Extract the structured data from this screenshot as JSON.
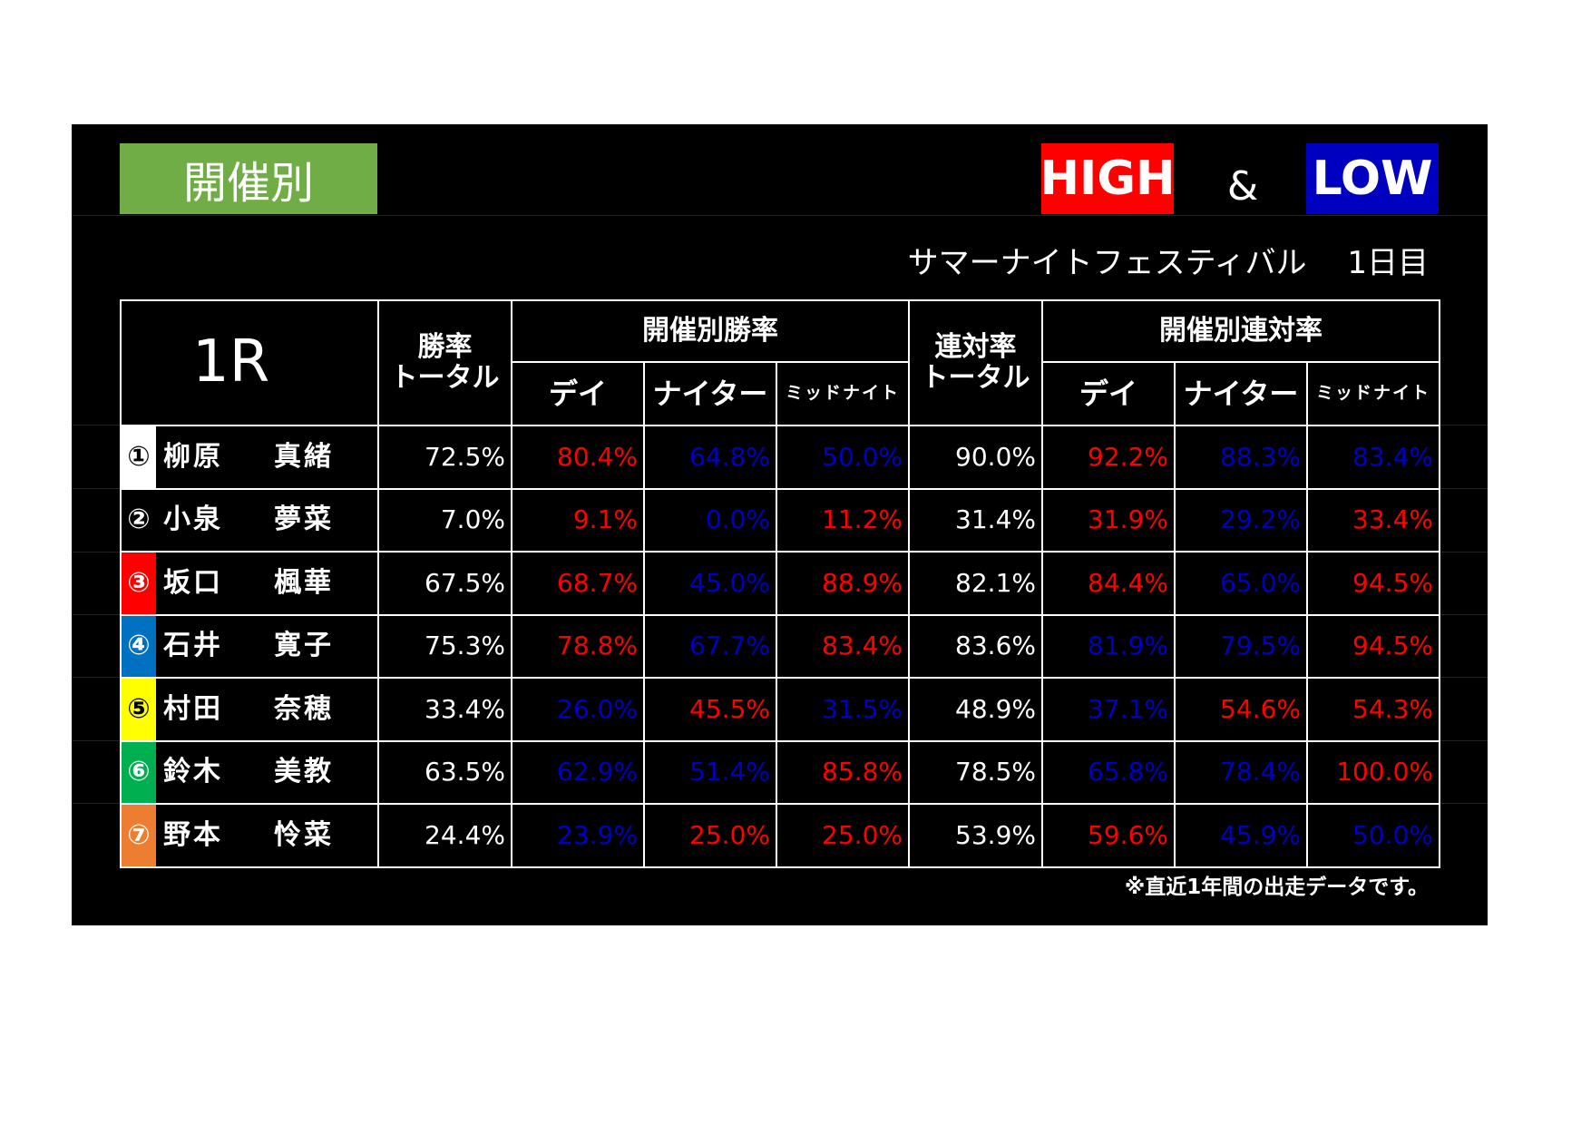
{
  "header": {
    "title": "開催別",
    "high": "HIGH",
    "amp": "&",
    "low": "LOW",
    "high_color": "#ff0000",
    "low_color": "#0000c0",
    "subtitle": "サマーナイトフェスティバル　 1日目"
  },
  "table": {
    "race": "1R",
    "col_win_total": "勝率\nトータル",
    "group_win": "開催別勝率",
    "col_place_total": "連対率\nトータル",
    "group_place": "開催別連対率",
    "sub_headers": [
      "デイ",
      "ナイター",
      "ミッドナイト",
      "デイ",
      "ナイター",
      "ミッドナイト"
    ],
    "rows": [
      {
        "number": "①",
        "badge_color": "#ffffff",
        "number_color": "#000000",
        "surname": "柳原",
        "given": "真緒",
        "values": [
          "72.5%",
          "80.4%",
          "64.8%",
          "50.0%",
          "90.0%",
          "92.2%",
          "88.3%",
          "83.4%"
        ],
        "colors": [
          "#ffffff",
          "#ff0000",
          "#0000c0",
          "#0000c0",
          "#ffffff",
          "#ff0000",
          "#0000c0",
          "#0000c0"
        ]
      },
      {
        "number": "②",
        "badge_color": "#000000",
        "number_color": "#ffffff",
        "surname": "小泉",
        "given": "夢菜",
        "values": [
          "7.0%",
          "9.1%",
          "0.0%",
          "11.2%",
          "31.4%",
          "31.9%",
          "29.2%",
          "33.4%"
        ],
        "colors": [
          "#ffffff",
          "#ff0000",
          "#0000c0",
          "#ff0000",
          "#ffffff",
          "#ff0000",
          "#0000c0",
          "#ff0000"
        ]
      },
      {
        "number": "③",
        "badge_color": "#ff0000",
        "number_color": "#ffffff",
        "surname": "坂口",
        "given": "楓華",
        "values": [
          "67.5%",
          "68.7%",
          "45.0%",
          "88.9%",
          "82.1%",
          "84.4%",
          "65.0%",
          "94.5%"
        ],
        "colors": [
          "#ffffff",
          "#ff0000",
          "#0000c0",
          "#ff0000",
          "#ffffff",
          "#ff0000",
          "#0000c0",
          "#ff0000"
        ]
      },
      {
        "number": "④",
        "badge_color": "#0070c0",
        "number_color": "#ffffff",
        "surname": "石井",
        "given": "寛子",
        "values": [
          "75.3%",
          "78.8%",
          "67.7%",
          "83.4%",
          "83.6%",
          "81.9%",
          "79.5%",
          "94.5%"
        ],
        "colors": [
          "#ffffff",
          "#ff0000",
          "#0000c0",
          "#ff0000",
          "#ffffff",
          "#0000c0",
          "#0000c0",
          "#ff0000"
        ]
      },
      {
        "number": "⑤",
        "badge_color": "#ffff00",
        "number_color": "#000000",
        "surname": "村田",
        "given": "奈穂",
        "values": [
          "33.4%",
          "26.0%",
          "45.5%",
          "31.5%",
          "48.9%",
          "37.1%",
          "54.6%",
          "54.3%"
        ],
        "colors": [
          "#ffffff",
          "#0000c0",
          "#ff0000",
          "#0000c0",
          "#ffffff",
          "#0000c0",
          "#ff0000",
          "#ff0000"
        ]
      },
      {
        "number": "⑥",
        "badge_color": "#00b050",
        "number_color": "#ffffff",
        "surname": "鈴木",
        "given": "美教",
        "values": [
          "63.5%",
          "62.9%",
          "51.4%",
          "85.8%",
          "78.5%",
          "65.8%",
          "78.4%",
          "100.0%"
        ],
        "colors": [
          "#ffffff",
          "#0000c0",
          "#0000c0",
          "#ff0000",
          "#ffffff",
          "#0000c0",
          "#0000c0",
          "#ff0000"
        ]
      },
      {
        "number": "⑦",
        "badge_color": "#ed7d31",
        "number_color": "#ffffff",
        "surname": "野本",
        "given": "怜菜",
        "values": [
          "24.4%",
          "23.9%",
          "25.0%",
          "25.0%",
          "53.9%",
          "59.6%",
          "45.9%",
          "50.0%"
        ],
        "colors": [
          "#ffffff",
          "#0000c0",
          "#ff0000",
          "#ff0000",
          "#ffffff",
          "#ff0000",
          "#0000c0",
          "#0000c0"
        ]
      }
    ],
    "footnote": "※直近1年間の出走データです。"
  }
}
